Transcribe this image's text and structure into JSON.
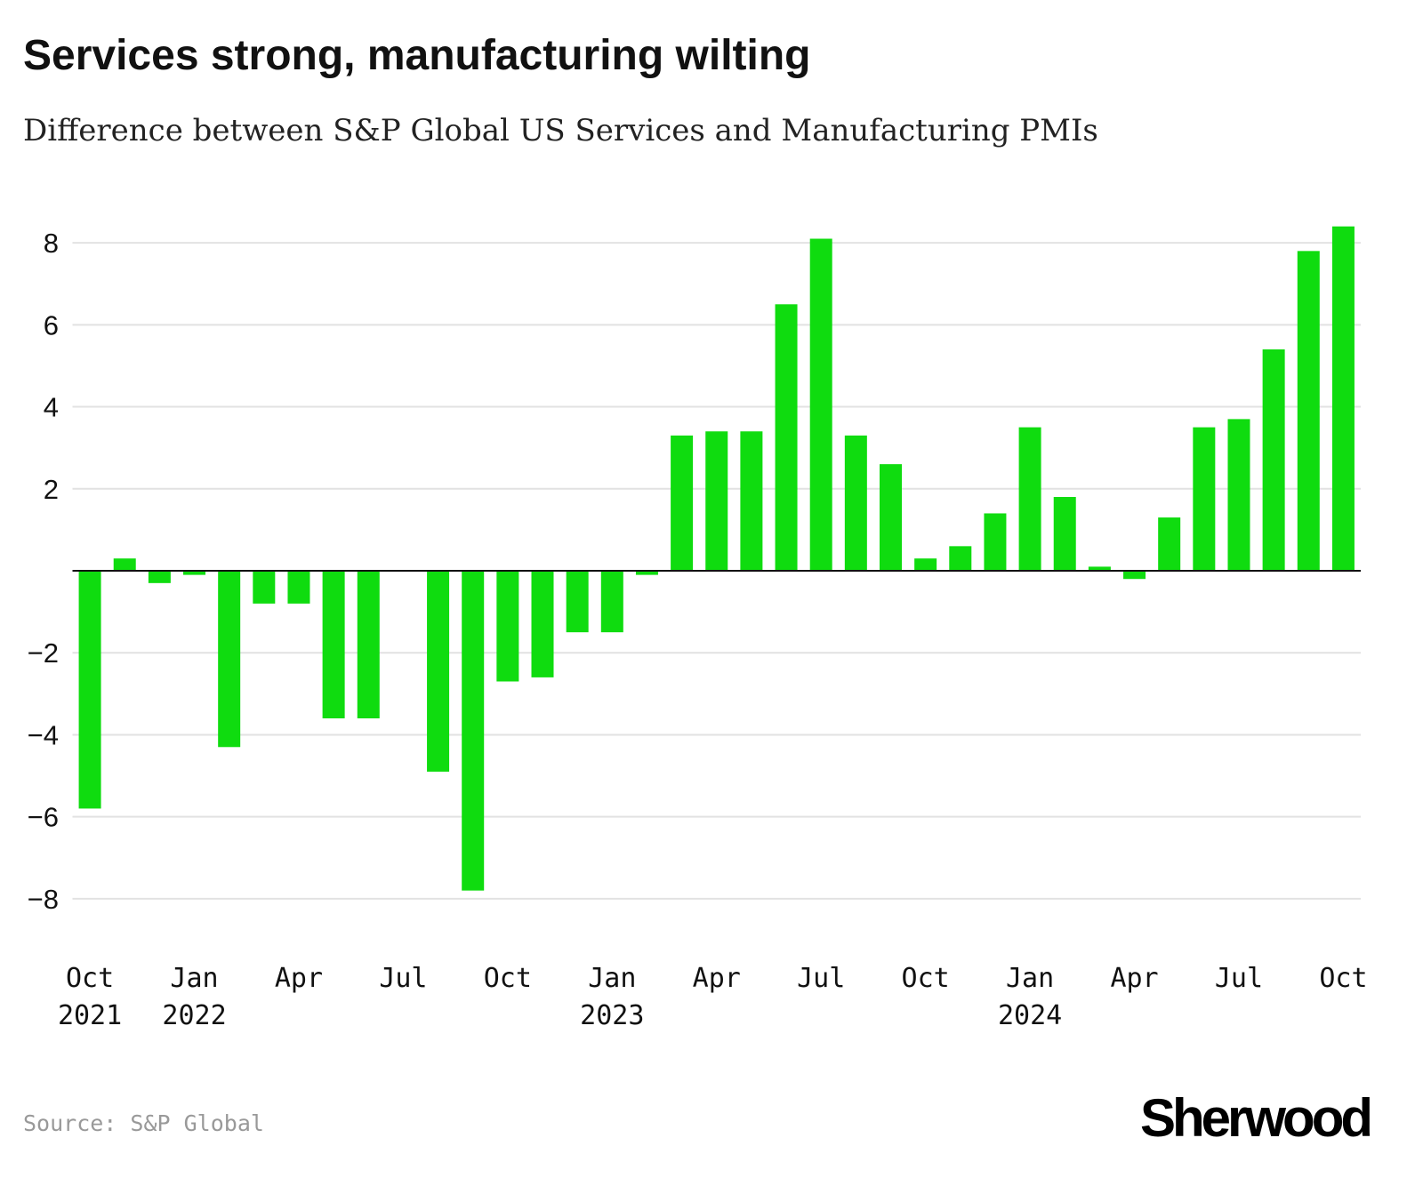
{
  "chart_data": {
    "type": "bar",
    "title": "Services strong, manufacturing wilting",
    "subtitle": "Difference between S&P Global US Services and Manufacturing PMIs",
    "categories": [
      "Oct\n2021",
      null,
      null,
      "Jan\n2022",
      null,
      null,
      "Apr",
      null,
      null,
      "Jul",
      null,
      null,
      "Oct",
      null,
      null,
      "Jan\n2023",
      null,
      null,
      "Apr",
      null,
      null,
      "Jul",
      null,
      null,
      "Oct",
      null,
      null,
      "Jan\n2024",
      null,
      null,
      "Apr",
      null,
      null,
      "Jul",
      null,
      null,
      "Oct"
    ],
    "values": [
      -5.8,
      0.3,
      -0.3,
      -0.1,
      -4.3,
      -0.8,
      -0.8,
      -3.6,
      -3.6,
      0,
      -4.9,
      -7.8,
      -2.7,
      -2.6,
      -1.5,
      -1.5,
      -0.1,
      3.3,
      3.4,
      3.4,
      6.5,
      8.1,
      3.3,
      2.6,
      0.3,
      0.6,
      1.4,
      3.5,
      1.8,
      0.1,
      -0.2,
      1.3,
      3.5,
      3.7,
      5.4,
      7.8,
      8.4
    ],
    "color": "#0fdc0f",
    "ylim": [
      -9,
      9
    ],
    "yticks": [
      {
        "value": -8,
        "label": "−8"
      },
      {
        "value": -6,
        "label": "−6"
      },
      {
        "value": -4,
        "label": "−4"
      },
      {
        "value": -2,
        "label": "−2"
      },
      2,
      4,
      6,
      8
    ],
    "grid": true,
    "source": "Source: S&P Global",
    "brand": "Sherwood"
  }
}
